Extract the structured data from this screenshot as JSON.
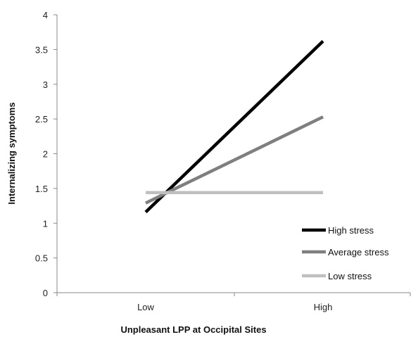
{
  "chart_data": {
    "type": "line",
    "title": "",
    "xlabel": "Unpleasant LPP at Occipital Sites",
    "ylabel": "Internalizing symptoms",
    "categories": [
      "Low",
      "High"
    ],
    "ylim": [
      0,
      4
    ],
    "yticks": [
      0,
      0.5,
      1,
      1.5,
      2,
      2.5,
      3,
      3.5,
      4
    ],
    "yticklabels": [
      "0",
      "0.5",
      "1",
      "1.5",
      "2",
      "2.5",
      "3",
      "3.5",
      "4"
    ],
    "grid": false,
    "legend_position": "bottom-right",
    "series": [
      {
        "name": "High stress",
        "values": [
          1.16,
          3.62
        ],
        "color": "#000000"
      },
      {
        "name": "Average stress",
        "values": [
          1.29,
          2.53
        ],
        "color": "#7f7f7f"
      },
      {
        "name": "Low stress",
        "values": [
          1.44,
          1.44
        ],
        "color": "#bfbfbf"
      }
    ]
  }
}
